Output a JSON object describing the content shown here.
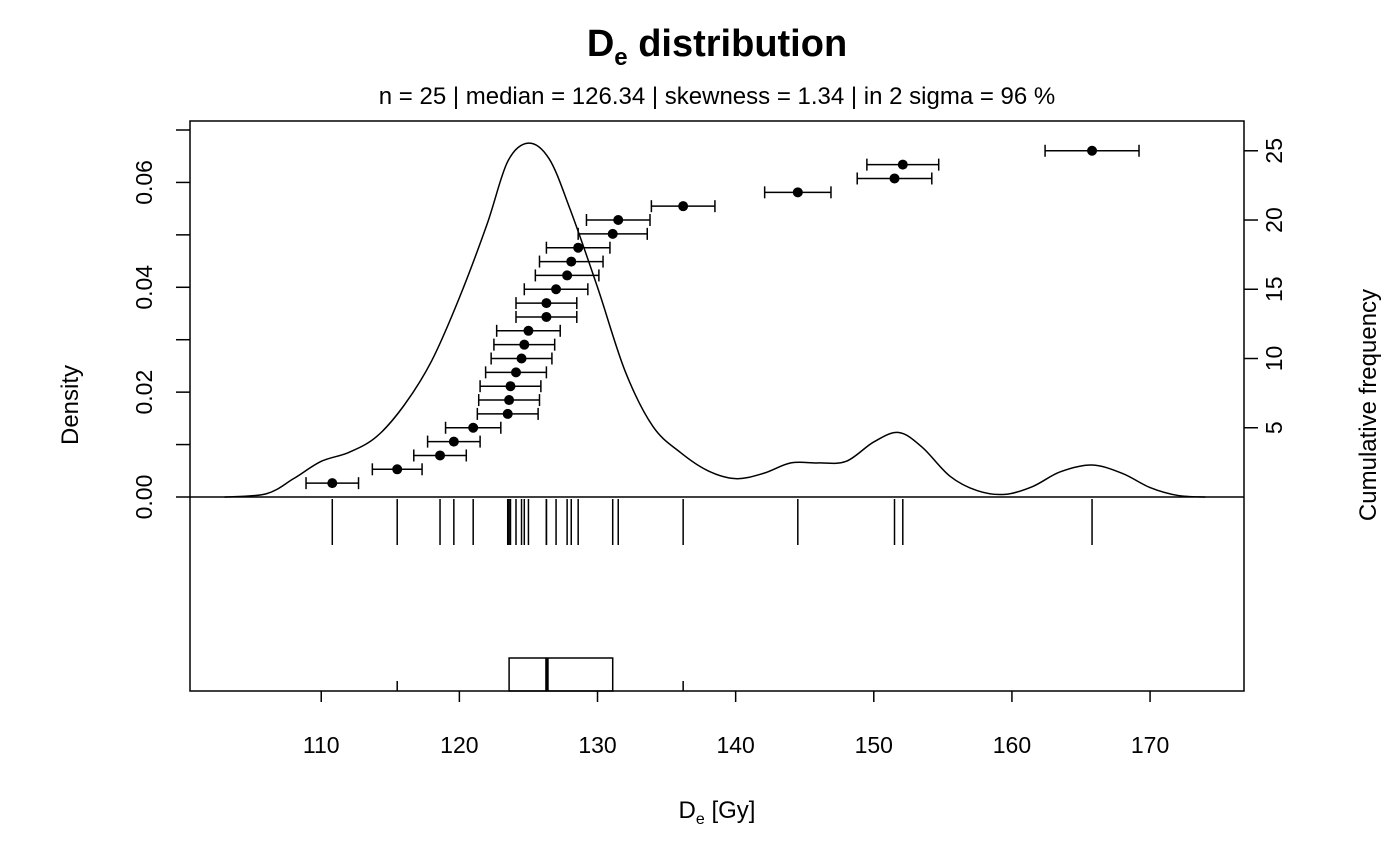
{
  "chart_data": {
    "type": "scatter",
    "title": {
      "main": "D",
      "sub": "e",
      "rest": " distribution"
    },
    "subtitle": "n = 25 | median = 126.34 | skewness = 1.34 | in 2 sigma = 96 %",
    "xlabel": {
      "main": "D",
      "sub": "e",
      "rest": " [Gy]"
    },
    "ylabel_left": "Density",
    "ylabel_right": "Cumulative frequency",
    "xlim": [
      100.5,
      176.8
    ],
    "ylim_left": [
      0,
      0.07
    ],
    "ylim_right": [
      0,
      26.5
    ],
    "x_ticks": [
      "110",
      "120",
      "130",
      "140",
      "150",
      "160",
      "170"
    ],
    "y_left_ticks": [
      "0.00",
      "0.02",
      "0.04",
      "0.06"
    ],
    "y_right_ticks": [
      "5",
      "10",
      "15",
      "20",
      "25"
    ],
    "grid": false,
    "points": [
      {
        "rank": 1,
        "de": 110.8,
        "err": 1.9
      },
      {
        "rank": 2,
        "de": 115.5,
        "err": 1.8
      },
      {
        "rank": 3,
        "de": 118.6,
        "err": 1.9
      },
      {
        "rank": 4,
        "de": 119.6,
        "err": 1.9
      },
      {
        "rank": 5,
        "de": 121.0,
        "err": 2.0
      },
      {
        "rank": 6,
        "de": 123.5,
        "err": 2.2
      },
      {
        "rank": 7,
        "de": 123.6,
        "err": 2.2
      },
      {
        "rank": 8,
        "de": 123.7,
        "err": 2.2
      },
      {
        "rank": 9,
        "de": 124.1,
        "err": 2.2
      },
      {
        "rank": 10,
        "de": 124.5,
        "err": 2.2
      },
      {
        "rank": 11,
        "de": 124.7,
        "err": 2.2
      },
      {
        "rank": 12,
        "de": 125.0,
        "err": 2.3
      },
      {
        "rank": 13,
        "de": 126.3,
        "err": 2.2
      },
      {
        "rank": 14,
        "de": 126.3,
        "err": 2.2
      },
      {
        "rank": 15,
        "de": 127.0,
        "err": 2.3
      },
      {
        "rank": 16,
        "de": 127.8,
        "err": 2.3
      },
      {
        "rank": 17,
        "de": 128.1,
        "err": 2.3
      },
      {
        "rank": 18,
        "de": 128.6,
        "err": 2.3
      },
      {
        "rank": 19,
        "de": 131.1,
        "err": 2.5
      },
      {
        "rank": 20,
        "de": 131.5,
        "err": 2.3
      },
      {
        "rank": 21,
        "de": 136.2,
        "err": 2.3
      },
      {
        "rank": 22,
        "de": 144.5,
        "err": 2.4
      },
      {
        "rank": 23,
        "de": 151.5,
        "err": 2.7
      },
      {
        "rank": 24,
        "de": 152.1,
        "err": 2.6
      },
      {
        "rank": 25,
        "de": 165.8,
        "err": 3.4
      }
    ],
    "density_curve": [
      [
        103.0,
        0.0
      ],
      [
        106.0,
        0.0006
      ],
      [
        108.0,
        0.0035
      ],
      [
        110.0,
        0.0068
      ],
      [
        112.0,
        0.0085
      ],
      [
        114.0,
        0.0115
      ],
      [
        116.0,
        0.0175
      ],
      [
        118.0,
        0.026
      ],
      [
        120.0,
        0.038
      ],
      [
        122.0,
        0.052
      ],
      [
        123.5,
        0.064
      ],
      [
        125.0,
        0.0675
      ],
      [
        126.5,
        0.0645
      ],
      [
        128.0,
        0.055
      ],
      [
        130.0,
        0.04
      ],
      [
        132.0,
        0.024
      ],
      [
        134.0,
        0.0135
      ],
      [
        136.0,
        0.0085
      ],
      [
        138.0,
        0.005
      ],
      [
        140.0,
        0.0035
      ],
      [
        142.0,
        0.0045
      ],
      [
        144.0,
        0.0065
      ],
      [
        146.0,
        0.0065
      ],
      [
        148.0,
        0.0068
      ],
      [
        150.0,
        0.0105
      ],
      [
        151.8,
        0.0123
      ],
      [
        153.5,
        0.0095
      ],
      [
        155.5,
        0.004
      ],
      [
        157.5,
        0.0012
      ],
      [
        159.5,
        0.0005
      ],
      [
        161.5,
        0.002
      ],
      [
        163.5,
        0.0048
      ],
      [
        165.8,
        0.0061
      ],
      [
        168.0,
        0.0045
      ],
      [
        170.0,
        0.0018
      ],
      [
        172.0,
        0.0003
      ],
      [
        174.0,
        0.0
      ]
    ],
    "boxplot": {
      "q1": 123.6,
      "median": 126.34,
      "q3": 131.1,
      "whisker_low": 115.5,
      "whisker_high": 136.2
    }
  }
}
